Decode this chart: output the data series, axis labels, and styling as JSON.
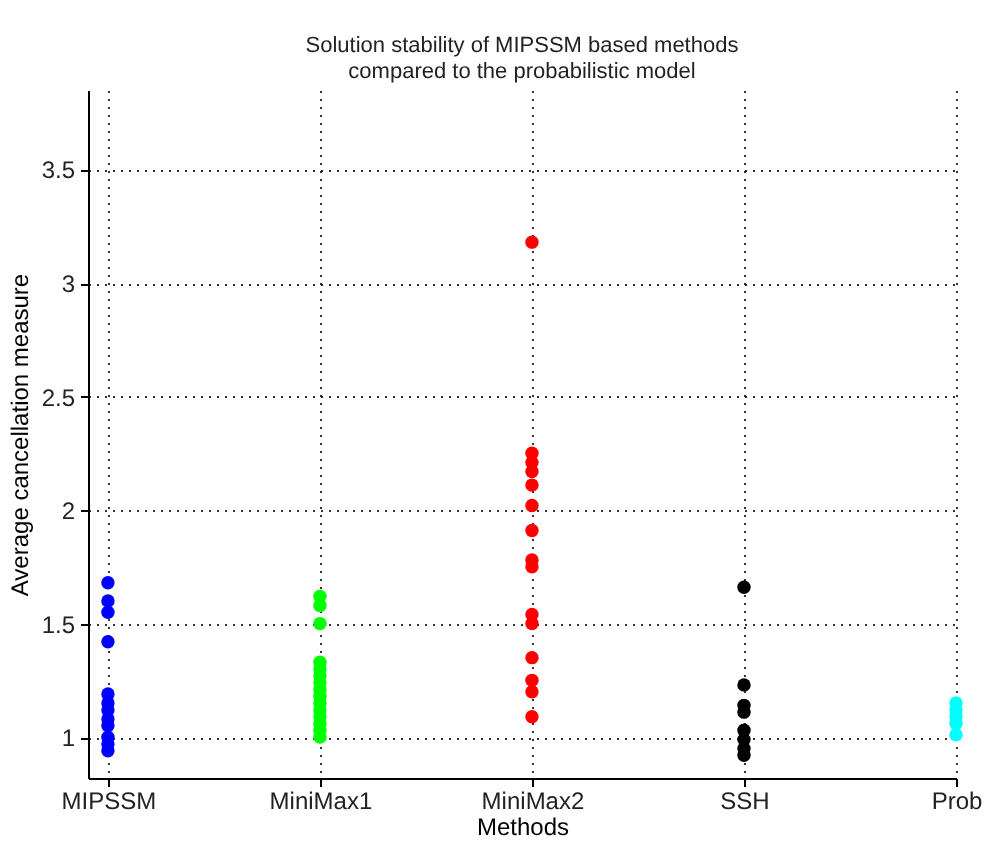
{
  "chart_data": {
    "type": "scatter",
    "title": "Solution stability of MIPSSM based methods\ncompared to the probabilistic model",
    "xlabel": "Methods",
    "ylabel": "Average cancellation measure",
    "categories": [
      "MIPSSM",
      "MiniMax1",
      "MiniMax2",
      "SSH",
      "Prob"
    ],
    "ylim": [
      0.82,
      3.85
    ],
    "yticks": [
      1,
      1.5,
      2,
      2.5,
      3,
      3.5
    ],
    "grid": true,
    "legend": false,
    "marker": "circle",
    "series": [
      {
        "color": "#0000ff",
        "x": [
          "MIPSSM",
          "MIPSSM",
          "MIPSSM",
          "MIPSSM",
          "MIPSSM",
          "MIPSSM",
          "MIPSSM",
          "MIPSSM",
          "MIPSSM",
          "MIPSSM",
          "MIPSSM",
          "MIPSSM"
        ],
        "values": [
          1.68,
          1.6,
          1.55,
          1.42,
          1.19,
          1.15,
          1.12,
          1.08,
          1.05,
          1.0,
          0.97,
          0.94
        ]
      },
      {
        "color": "#00ff00",
        "x": [
          "MiniMax1",
          "MiniMax1",
          "MiniMax1",
          "MiniMax1",
          "MiniMax1",
          "MiniMax1",
          "MiniMax1",
          "MiniMax1",
          "MiniMax1",
          "MiniMax1",
          "MiniMax1",
          "MiniMax1",
          "MiniMax1",
          "MiniMax1",
          "MiniMax1"
        ],
        "values": [
          1.62,
          1.58,
          1.5,
          1.33,
          1.3,
          1.27,
          1.24,
          1.21,
          1.18,
          1.15,
          1.12,
          1.09,
          1.06,
          1.03,
          1.0
        ]
      },
      {
        "color": "#ff0000",
        "x": [
          "MiniMax2",
          "MiniMax2",
          "MiniMax2",
          "MiniMax2",
          "MiniMax2",
          "MiniMax2",
          "MiniMax2",
          "MiniMax2",
          "MiniMax2",
          "MiniMax2",
          "MiniMax2",
          "MiniMax2",
          "MiniMax2",
          "MiniMax2",
          "MiniMax2"
        ],
        "values": [
          3.18,
          2.25,
          2.21,
          2.17,
          2.11,
          2.02,
          1.91,
          1.78,
          1.75,
          1.54,
          1.5,
          1.35,
          1.25,
          1.2,
          1.09
        ]
      },
      {
        "color": "#000000",
        "x": [
          "SSH",
          "SSH",
          "SSH",
          "SSH",
          "SSH",
          "SSH",
          "SSH",
          "SSH"
        ],
        "values": [
          1.66,
          1.23,
          1.14,
          1.11,
          1.03,
          0.99,
          0.95,
          0.92
        ]
      },
      {
        "color": "#00ffff",
        "x": [
          "Prob",
          "Prob",
          "Prob",
          "Prob",
          "Prob"
        ],
        "values": [
          1.15,
          1.12,
          1.09,
          1.06,
          1.01
        ]
      }
    ]
  }
}
